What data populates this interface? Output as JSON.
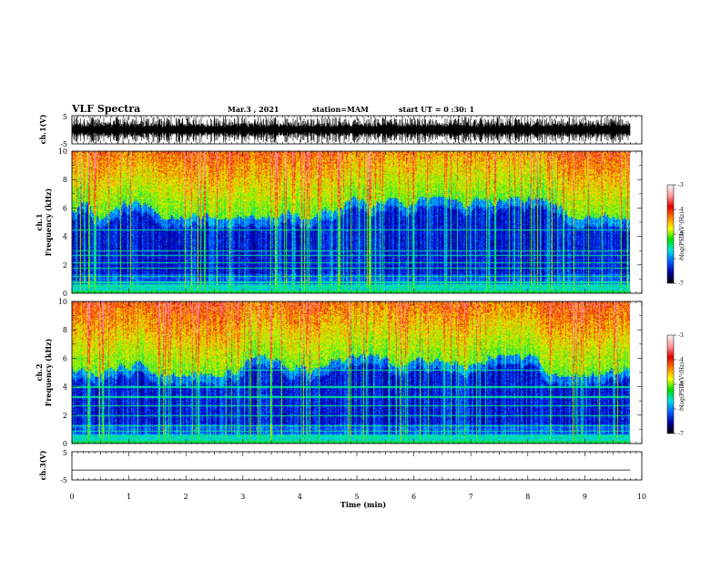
{
  "header": {
    "title": "VLF Spectra",
    "date": "Mar.3  , 2021",
    "station": "station=MAM",
    "start_ut": "start  UT =   0  :30: 1"
  },
  "colorbar": {
    "label": "log(PSD)(V²/Hz)",
    "ticks": [
      "-3",
      "-4",
      "-5",
      "-6",
      "-7"
    ],
    "stops": [
      "#f4f4f4",
      "#ff9a9a",
      "#e00000",
      "#ff8000",
      "#ffff00",
      "#00e000",
      "#00e0e0",
      "#0060ff",
      "#0000a0",
      "#000000"
    ]
  },
  "chart_data": [
    {
      "type": "line",
      "panel": "ch1-waveform",
      "ylabel": "ch.1(V)",
      "ylim": [
        -5,
        5
      ],
      "ytick_labels": [
        "5",
        "-5"
      ],
      "signal": "dense impulsive spikes across full range"
    },
    {
      "type": "heatmap",
      "panel": "ch1-spectrogram",
      "ylabel": "ch.1\nFrequency  (kHz)",
      "ylabel_lines": [
        "ch.1",
        "Frequency  (kHz)"
      ],
      "ylim": [
        0,
        10
      ],
      "ytick_labels": [
        "0",
        "2",
        "4",
        "6",
        "8",
        "10"
      ],
      "xlim_min": [
        0,
        10
      ],
      "data_extent_min": 9.8,
      "color_scale": "log(PSD)(V²/Hz)",
      "clim": [
        -7,
        -3
      ]
    },
    {
      "type": "heatmap",
      "panel": "ch2-spectrogram",
      "ylabel_lines": [
        "ch.2",
        "Frequency  (kHz)"
      ],
      "ylim": [
        0,
        10
      ],
      "ytick_labels": [
        "0",
        "2",
        "4",
        "6",
        "8",
        "10"
      ],
      "xlim_min": [
        0,
        10
      ],
      "data_extent_min": 9.8,
      "color_scale": "log(PSD)(V²/Hz)",
      "clim": [
        -7,
        -3
      ]
    },
    {
      "type": "line",
      "panel": "ch3-waveform",
      "ylabel": "ch.3(V)",
      "ylim": [
        -5,
        5
      ],
      "ytick_labels": [
        "5",
        "-5"
      ],
      "x": [
        0,
        9.8
      ],
      "y": [
        -1.5,
        -1.5
      ]
    }
  ],
  "x_axis": {
    "label": "Time  (min)",
    "range": [
      0,
      10
    ],
    "tick_labels": [
      "0",
      "1",
      "2",
      "3",
      "4",
      "5",
      "6",
      "7",
      "8",
      "9",
      "10"
    ]
  }
}
